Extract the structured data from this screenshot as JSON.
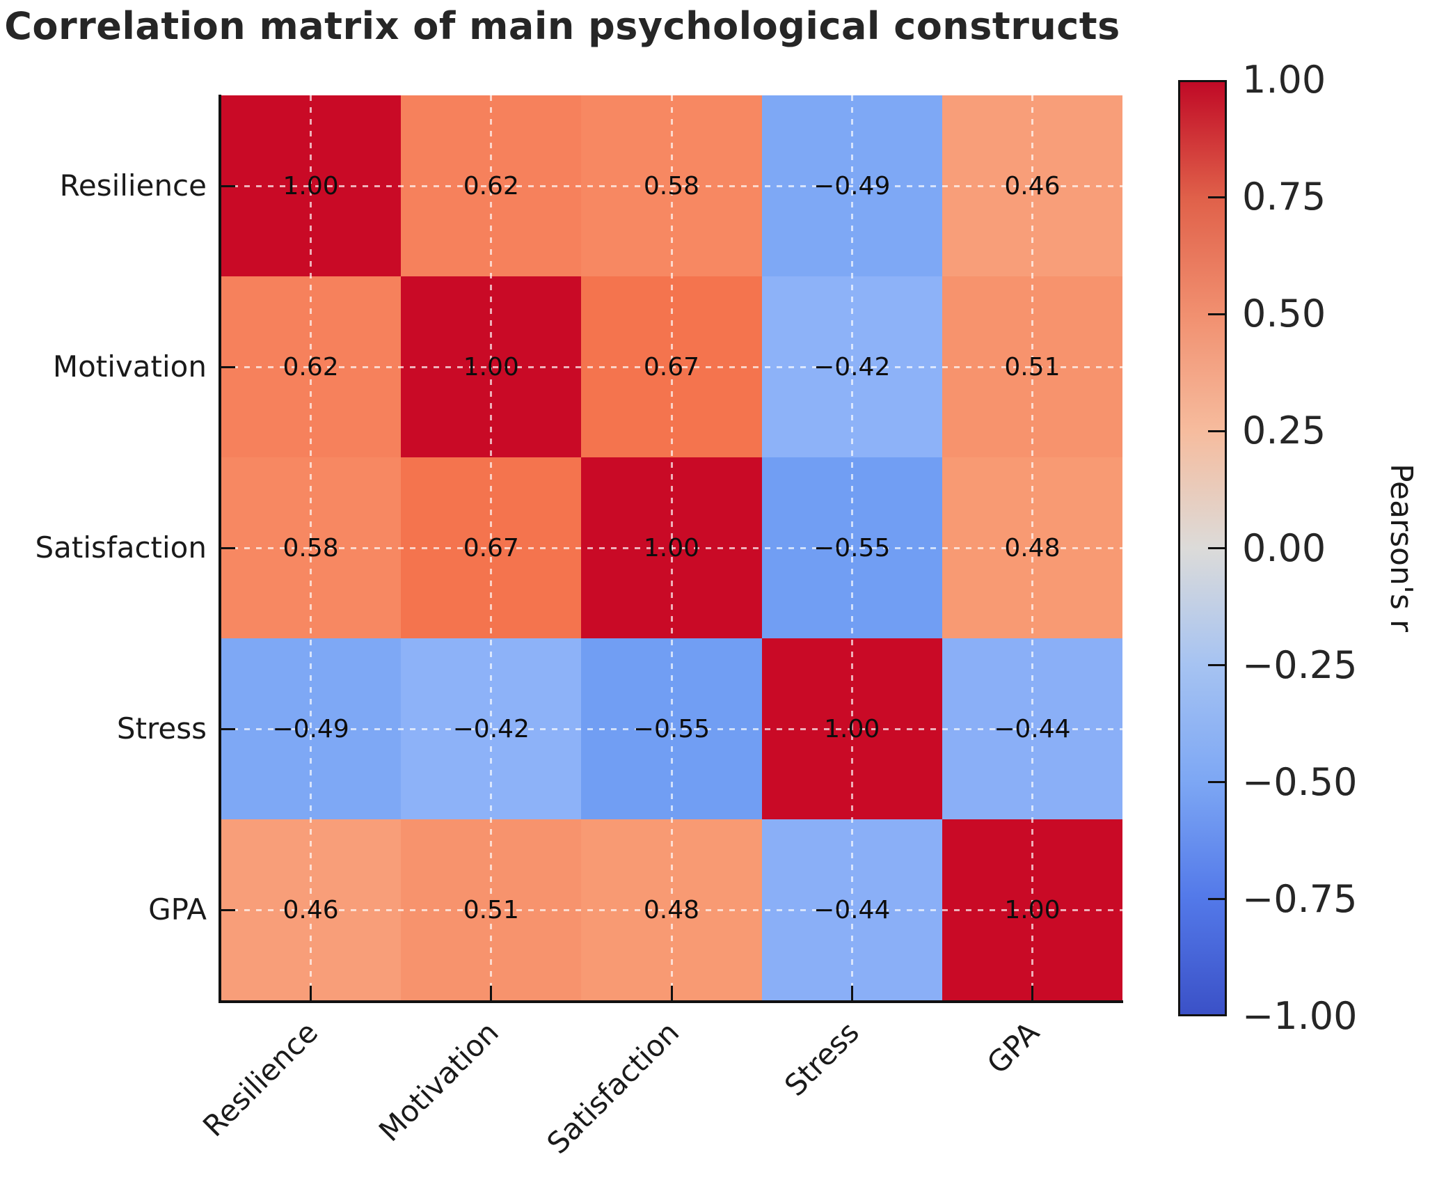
{
  "title": "Correlation matrix of main psychological constructs",
  "chart_data": {
    "type": "heatmap",
    "x_categories": [
      "Resilience",
      "Motivation",
      "Satisfaction",
      "Stress",
      "GPA"
    ],
    "y_categories": [
      "Resilience",
      "Motivation",
      "Satisfaction",
      "Stress",
      "GPA"
    ],
    "matrix": [
      [
        1.0,
        0.62,
        0.58,
        -0.49,
        0.46
      ],
      [
        0.62,
        1.0,
        0.67,
        -0.42,
        0.51
      ],
      [
        0.58,
        0.67,
        1.0,
        -0.55,
        0.48
      ],
      [
        -0.49,
        -0.42,
        -0.55,
        1.0,
        -0.44
      ],
      [
        0.46,
        0.51,
        0.48,
        -0.44,
        1.0
      ]
    ],
    "cell_labels": [
      [
        "1.00",
        "0.62",
        "0.58",
        "−0.49",
        "0.46"
      ],
      [
        "0.62",
        "1.00",
        "0.67",
        "−0.42",
        "0.51"
      ],
      [
        "0.58",
        "0.67",
        "1.00",
        "−0.55",
        "0.48"
      ],
      [
        "−0.49",
        "−0.42",
        "−0.55",
        "1.00",
        "−0.44"
      ],
      [
        "0.46",
        "0.51",
        "0.48",
        "−0.44",
        "1.00"
      ]
    ],
    "cell_colors": [
      [
        "#C90A26",
        "#F6815C",
        "#F78862",
        "#7EA8F5",
        "#F89E79"
      ],
      [
        "#F6815C",
        "#C90A26",
        "#F4744E",
        "#8DB2F8",
        "#F7936D"
      ],
      [
        "#F78862",
        "#F4744E",
        "#C90A26",
        "#719EF3",
        "#F89A73"
      ],
      [
        "#7EA8F5",
        "#8DB2F8",
        "#719EF3",
        "#C90A26",
        "#8AAFF7"
      ],
      [
        "#F89E79",
        "#F7936D",
        "#F89A73",
        "#8AAFF7",
        "#C90A26"
      ]
    ],
    "grid": "dashed white lines at row/column centers",
    "colormap": "coolwarm diverging (blue-gray-red)",
    "colorbar": {
      "label": "Pearson's r",
      "min": -1.0,
      "max": 1.0,
      "tick_values": [
        1.0,
        0.75,
        0.5,
        0.25,
        0.0,
        -0.25,
        -0.5,
        -0.75,
        -1.0
      ],
      "tick_labels": [
        "1.00",
        "0.75",
        "0.50",
        "0.25",
        "0.00",
        "−0.25",
        "−0.50",
        "−0.75",
        "−1.00"
      ],
      "gradient_top_to_bottom": [
        "#C00A26",
        "#E0614A",
        "#F19070",
        "#F6BC9E",
        "#DCDBD9",
        "#A6C3F2",
        "#7DA7F4",
        "#5379E9",
        "#3B51C7"
      ]
    },
    "accent_colors": {
      "strong_positive": "#C90A26",
      "strong_negative": "#3B51C7",
      "neutral": "#DCDBD9",
      "spine": "#111111",
      "text": "#1a1a1a"
    }
  }
}
